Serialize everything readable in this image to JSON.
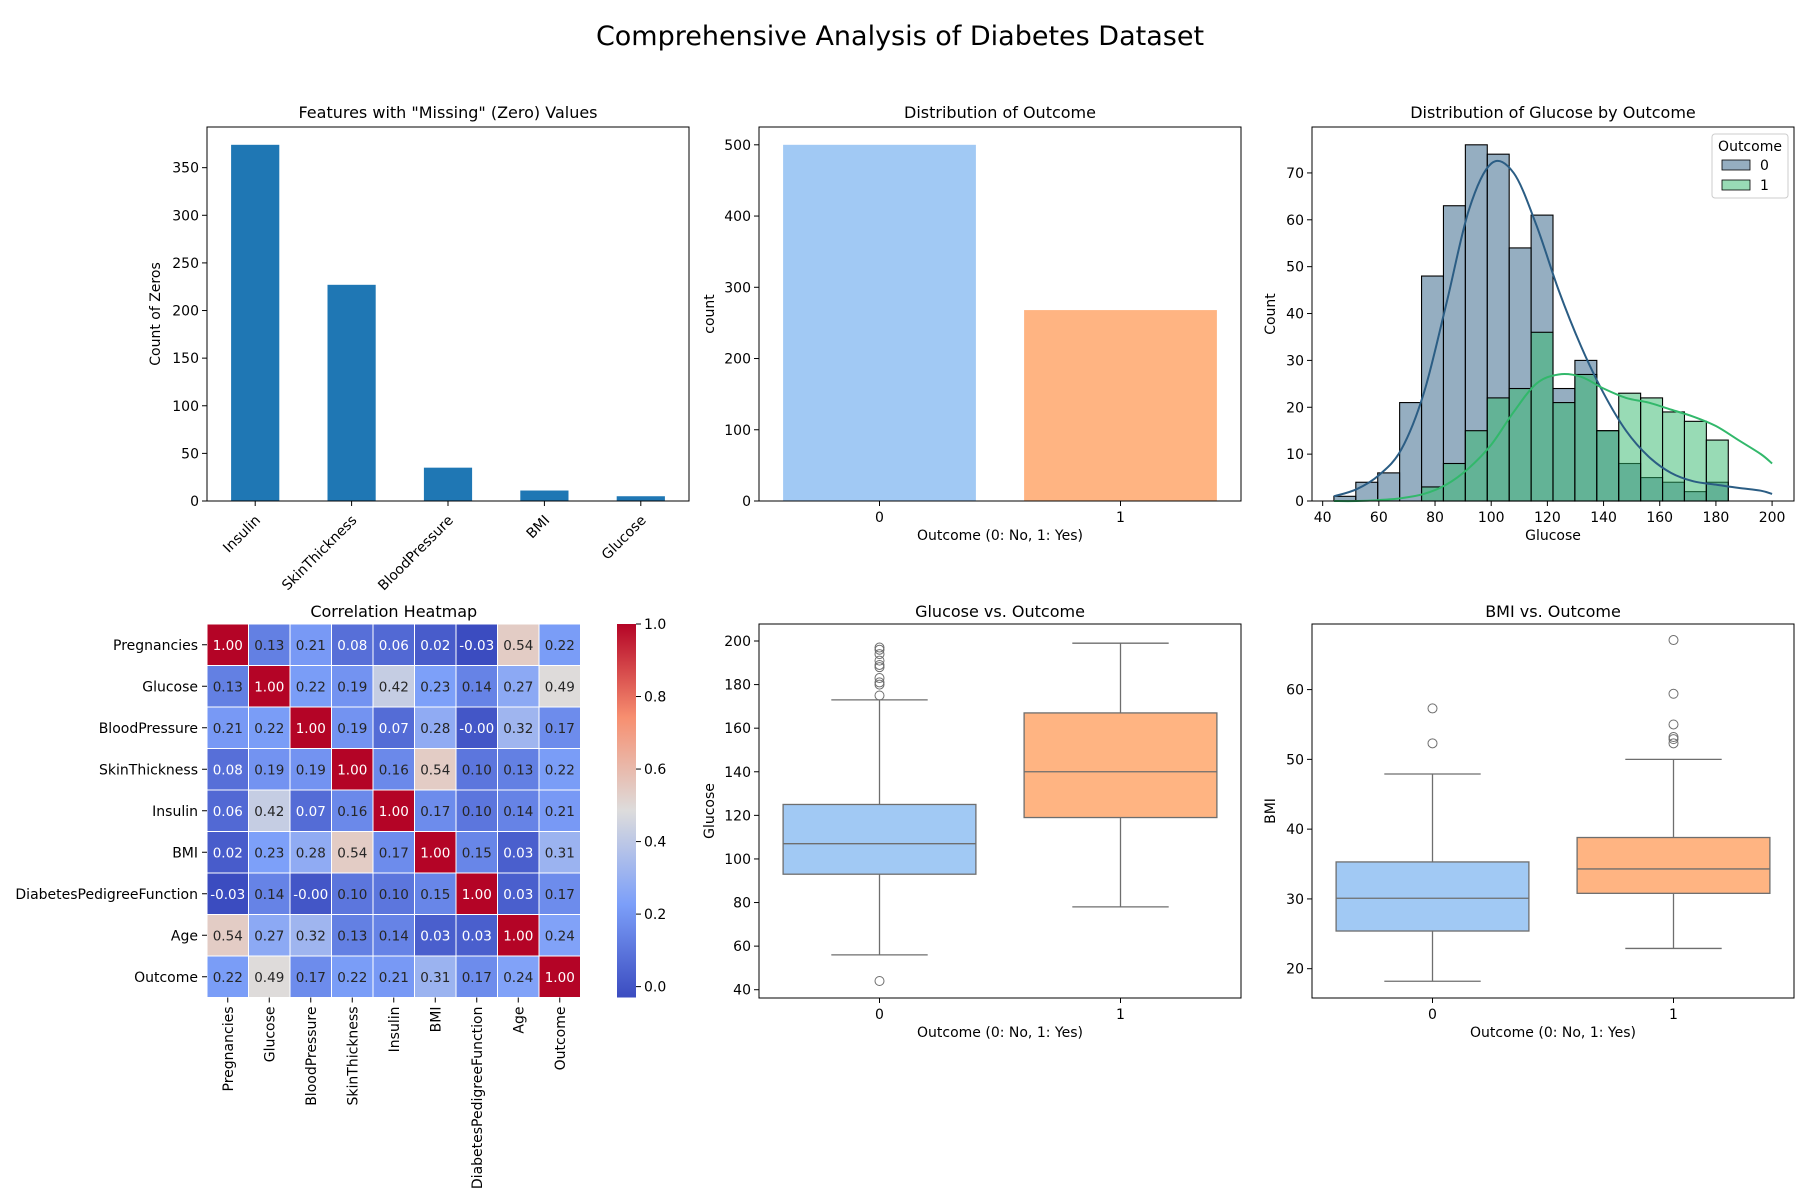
{
  "suptitle": "Comprehensive Analysis of Diabetes Dataset",
  "colors": {
    "bar_blue": "#1f77b4",
    "pastel_blue": "#a1c9f4",
    "pastel_orange": "#ffb482",
    "outcome0": "#2b5d84",
    "outcome1": "#32b86b",
    "box_line": "#6e6e6e"
  },
  "chart_data": [
    {
      "id": "missing",
      "type": "bar",
      "title": "Features with \"Missing\" (Zero) Values",
      "xlabel": "",
      "ylabel": "Count of Zeros",
      "categories": [
        "Insulin",
        "SkinThickness",
        "BloodPressure",
        "BMI",
        "Glucose"
      ],
      "values": [
        374,
        227,
        35,
        11,
        5
      ],
      "ylim": [
        0,
        392.7
      ],
      "yticks": [
        0,
        50,
        100,
        150,
        200,
        250,
        300,
        350
      ],
      "grid": false
    },
    {
      "id": "outcome",
      "type": "bar",
      "title": "Distribution of Outcome",
      "xlabel": "Outcome (0: No, 1: Yes)",
      "ylabel": "count",
      "categories": [
        "0",
        "1"
      ],
      "values": [
        500,
        268
      ],
      "ylim": [
        0,
        525
      ],
      "yticks": [
        0,
        100,
        200,
        300,
        400,
        500
      ],
      "grid": false
    },
    {
      "id": "glucose_hist",
      "type": "bar",
      "title": "Distribution of Glucose by Outcome",
      "xlabel": "Glucose",
      "ylabel": "Count",
      "bin_edges": [
        44,
        51.8,
        59.6,
        67.4,
        75.2,
        83,
        90.8,
        98.6,
        106.4,
        114.2,
        122,
        129.8,
        137.6,
        145.4,
        153.2,
        161,
        168.8,
        176.6,
        184.4,
        192.2,
        200
      ],
      "xlim": [
        36.2,
        207.8
      ],
      "ylim": [
        0,
        79.8
      ],
      "xticks": [
        40,
        60,
        80,
        100,
        120,
        140,
        160,
        180,
        200
      ],
      "yticks": [
        0,
        10,
        20,
        30,
        40,
        50,
        60,
        70
      ],
      "legend_title": "Outcome",
      "legend_position": "top-right",
      "series": [
        {
          "name": "0",
          "counts": [
            1,
            4,
            6,
            21,
            48,
            63,
            76,
            74,
            54,
            61,
            24,
            30,
            15,
            8,
            5,
            4,
            2,
            4,
            0,
            0
          ],
          "kde_x": [
            44,
            52,
            60,
            68,
            76,
            84,
            92,
            100,
            108,
            116,
            124,
            132,
            140,
            148,
            156,
            164,
            172,
            180,
            188,
            196,
            200
          ],
          "kde_y": [
            1,
            2.5,
            5.5,
            11,
            23,
            42,
            62,
            72,
            70,
            59,
            45,
            33,
            23,
            15,
            9.5,
            6,
            4.2,
            3.5,
            2.8,
            2.2,
            1.5
          ]
        },
        {
          "name": "1",
          "counts": [
            0,
            0,
            0,
            0,
            3,
            8,
            15,
            22,
            24,
            36,
            21,
            27,
            15,
            23,
            22,
            19,
            17,
            13,
            0,
            0
          ],
          "kde_x": [
            44,
            52,
            60,
            68,
            76,
            84,
            92,
            100,
            108,
            116,
            124,
            132,
            140,
            148,
            156,
            164,
            172,
            180,
            188,
            196,
            200
          ],
          "kde_y": [
            0,
            0,
            0.2,
            0.6,
            1.5,
            3.5,
            7,
            12,
            19,
            25,
            27,
            26.5,
            24,
            22,
            21,
            19.5,
            18,
            16,
            13,
            10,
            8
          ]
        }
      ]
    },
    {
      "id": "corr",
      "type": "heatmap",
      "title": "Correlation Heatmap",
      "labels": [
        "Pregnancies",
        "Glucose",
        "BloodPressure",
        "SkinThickness",
        "Insulin",
        "BMI",
        "DiabetesPedigreeFunction",
        "Age",
        "Outcome"
      ],
      "matrix": [
        [
          "1.00",
          "0.13",
          "0.21",
          "0.08",
          "0.06",
          "0.02",
          "-0.03",
          "0.54",
          "0.22"
        ],
        [
          "0.13",
          "1.00",
          "0.22",
          "0.19",
          "0.42",
          "0.23",
          "0.14",
          "0.27",
          "0.49"
        ],
        [
          "0.21",
          "0.22",
          "1.00",
          "0.19",
          "0.07",
          "0.28",
          "-0.00",
          "0.32",
          "0.17"
        ],
        [
          "0.08",
          "0.19",
          "0.19",
          "1.00",
          "0.16",
          "0.54",
          "0.10",
          "0.13",
          "0.22"
        ],
        [
          "0.06",
          "0.42",
          "0.07",
          "0.16",
          "1.00",
          "0.17",
          "0.10",
          "0.14",
          "0.21"
        ],
        [
          "0.02",
          "0.23",
          "0.28",
          "0.54",
          "0.17",
          "1.00",
          "0.15",
          "0.03",
          "0.31"
        ],
        [
          "-0.03",
          "0.14",
          "-0.00",
          "0.10",
          "0.10",
          "0.15",
          "1.00",
          "0.03",
          "0.17"
        ],
        [
          "0.54",
          "0.27",
          "0.32",
          "0.13",
          "0.14",
          "0.03",
          "0.03",
          "1.00",
          "0.24"
        ],
        [
          "0.22",
          "0.49",
          "0.17",
          "0.22",
          "0.21",
          "0.31",
          "0.17",
          "0.24",
          "1.00"
        ]
      ],
      "vmin": -0.03,
      "vmax": 1.0,
      "colorbar_ticks": [
        "0.0",
        "0.2",
        "0.4",
        "0.6",
        "0.8",
        "1.0"
      ],
      "colormap": "coolwarm"
    },
    {
      "id": "glucose_box",
      "type": "box",
      "title": "Glucose vs. Outcome",
      "xlabel": "Outcome (0: No, 1: Yes)",
      "ylabel": "Glucose",
      "categories": [
        "0",
        "1"
      ],
      "ylim": [
        36.2,
        207.8
      ],
      "yticks": [
        40,
        60,
        80,
        100,
        120,
        140,
        160,
        180,
        200
      ],
      "boxes": [
        {
          "whisker_low": 56,
          "q1": 93,
          "median": 107,
          "q3": 125,
          "whisker_high": 173,
          "outliers": [
            44,
            175,
            180,
            181,
            183,
            188,
            189,
            191,
            194,
            196,
            197
          ]
        },
        {
          "whisker_low": 78,
          "q1": 119,
          "median": 140,
          "q3": 167,
          "whisker_high": 199,
          "outliers": []
        }
      ]
    },
    {
      "id": "bmi_box",
      "type": "box",
      "title": "BMI vs. Outcome",
      "xlabel": "Outcome (0: No, 1: Yes)",
      "ylabel": "BMI",
      "categories": [
        "0",
        "1"
      ],
      "ylim": [
        15.8,
        69.4
      ],
      "yticks": [
        20,
        30,
        40,
        50,
        60
      ],
      "boxes": [
        {
          "whisker_low": 18.2,
          "q1": 25.4,
          "median": 30.1,
          "q3": 35.3,
          "whisker_high": 47.9,
          "outliers": [
            52.3,
            57.3
          ]
        },
        {
          "whisker_low": 22.9,
          "q1": 30.8,
          "median": 34.3,
          "q3": 38.8,
          "whisker_high": 50.0,
          "outliers": [
            52.3,
            52.9,
            53.2,
            55.0,
            59.4,
            67.1
          ]
        }
      ]
    }
  ]
}
